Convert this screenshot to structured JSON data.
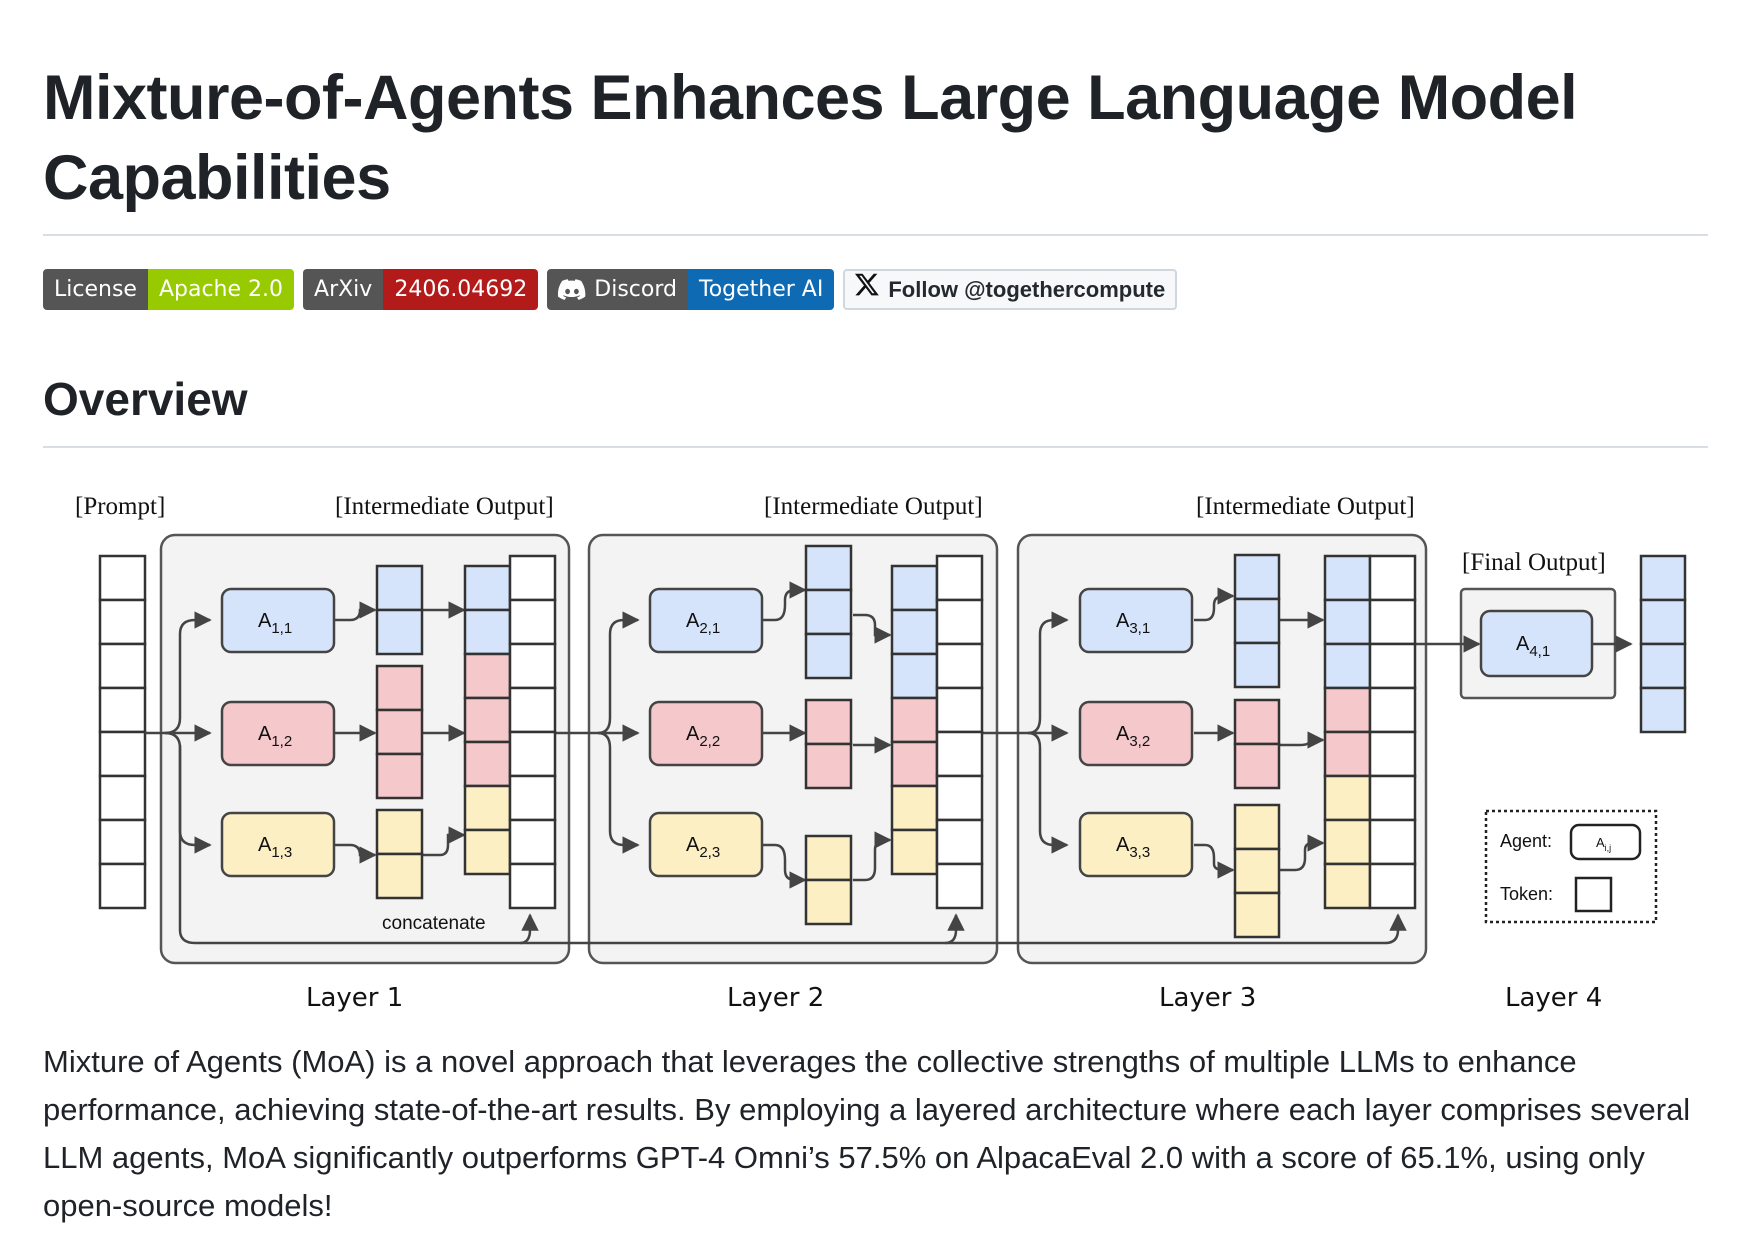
{
  "title": "Mixture-of-Agents Enhances Large Language Model Capabilities",
  "badges": {
    "license": {
      "label": "License",
      "value": "Apache 2.0",
      "color": "#97ca00"
    },
    "arxiv": {
      "label": "ArXiv",
      "value": "2406.04692",
      "color": "#b31b1b"
    },
    "discord": {
      "label": "Discord",
      "value": "Together AI",
      "color": "#0f6ab4",
      "icon": "discord-icon"
    },
    "twitter": {
      "label": "Follow @togethercompute",
      "icon": "x-logo-icon"
    }
  },
  "overview_heading": "Overview",
  "diagram": {
    "prompt_label": "[Prompt]",
    "intermediate_label": "[Intermediate Output]",
    "final_label": "[Final Output]",
    "concatenate_label": "concatenate",
    "layers": [
      "Layer 1",
      "Layer 2",
      "Layer 3",
      "Layer 4"
    ],
    "agent_main": "A",
    "agents": {
      "l1": [
        "1,1",
        "1,2",
        "1,3"
      ],
      "l2": [
        "2,1",
        "2,2",
        "2,3"
      ],
      "l3": [
        "3,1",
        "3,2",
        "3,3"
      ],
      "l4": [
        "4,1"
      ]
    },
    "legend": {
      "agent": "Agent:",
      "agent_sample_main": "A",
      "agent_sample_sub": "i,j",
      "token": "Token:"
    },
    "colors": {
      "blue": "#d6e4fb",
      "red": "#f5c8cb",
      "yellow": "#fcefc4",
      "panel": "#f3f3f3"
    }
  },
  "description": "Mixture of Agents (MoA) is a novel approach that leverages the collective strengths of multiple LLMs to enhance performance, achieving state-of-the-art results. By employing a layered architecture where each layer comprises several LLM agents, MoA significantly outperforms GPT-4 Omni’s 57.5% on AlpacaEval 2.0 with a score of 65.1%, using only open-source models!"
}
